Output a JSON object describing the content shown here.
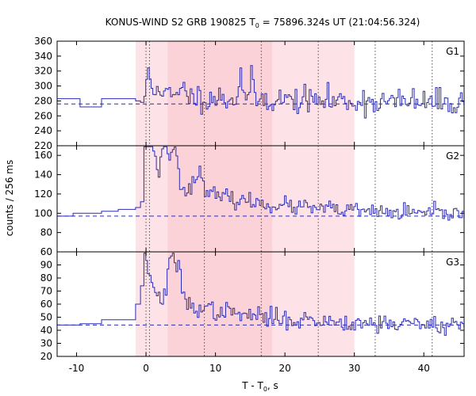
{
  "chart_data": {
    "type": "line",
    "title": {
      "prefix": "KONUS-WIND S2 GRB 190825 T",
      "sub": "0",
      "suffix": " = 75896.324s UT (21:04:56.324)"
    },
    "xlabel": {
      "prefix": "T - T",
      "sub": "0",
      "suffix": ", s"
    },
    "ylabel": "counts / 256 ms",
    "xlim": [
      -12.8,
      45.8
    ],
    "x_ticks": [
      -10,
      0,
      10,
      20,
      30,
      40
    ],
    "shaded_intervals": [
      {
        "from": -1.5,
        "to": 3.1,
        "shade": "light"
      },
      {
        "from": 3.1,
        "to": 18.2,
        "shade": "dark"
      },
      {
        "from": 18.2,
        "to": 30.0,
        "shade": "light"
      }
    ],
    "dotted_verticals": [
      0.0,
      0.5,
      8.4,
      16.6,
      24.8,
      33.0,
      41.2
    ],
    "panels": [
      {
        "name": "G1",
        "ylim": [
          220,
          360
        ],
        "y_ticks": [
          220,
          240,
          260,
          280,
          300,
          320,
          340,
          360
        ],
        "background": 276,
        "pre_trigger": [
          [
            -12.8,
            283
          ],
          [
            -9.5,
            272
          ],
          [
            -6.4,
            283
          ],
          [
            -1.5,
            280
          ],
          [
            -0.8,
            278
          ]
        ],
        "burst_start": -0.3,
        "burst_end": 45.8,
        "step": 0.256,
        "peaks": [
          {
            "t": 0.3,
            "amp": 35,
            "w": 0.3
          },
          {
            "t": 1.6,
            "amp": 20,
            "w": 0.4
          },
          {
            "t": 5.5,
            "amp": 18,
            "w": 0.4
          },
          {
            "t": 13.5,
            "amp": 50,
            "w": 0.25
          },
          {
            "t": 15.0,
            "amp": 25,
            "w": 0.3
          }
        ],
        "decay_amp": 12,
        "decay_tau": 25,
        "noise": 15,
        "seed": 11
      },
      {
        "name": "G2",
        "ylim": [
          60,
          170
        ],
        "y_ticks": [
          60,
          80,
          100,
          120,
          140,
          160
        ],
        "background": 97,
        "pre_trigger": [
          [
            -12.8,
            97
          ],
          [
            -10.5,
            100
          ],
          [
            -6.4,
            102
          ],
          [
            -4.0,
            104
          ],
          [
            -1.5,
            106
          ],
          [
            -0.8,
            112
          ]
        ],
        "burst_start": -0.3,
        "burst_end": 45.8,
        "step": 0.256,
        "peaks": [
          {
            "t": -0.1,
            "amp": 62,
            "w": 0.5
          },
          {
            "t": 0.8,
            "amp": 40,
            "w": 0.6
          },
          {
            "t": 2.5,
            "amp": 50,
            "w": 0.5
          },
          {
            "t": 3.8,
            "amp": 40,
            "w": 0.8
          },
          {
            "t": 7.5,
            "amp": 20,
            "w": 1.0
          }
        ],
        "decay_amp": 40,
        "decay_tau": 15,
        "noise": 7,
        "seed": 23
      },
      {
        "name": "G3",
        "ylim": [
          20,
          100
        ],
        "y_ticks": [
          20,
          30,
          40,
          50,
          60,
          70,
          80,
          90
        ],
        "background": 44,
        "pre_trigger": [
          [
            -12.8,
            44
          ],
          [
            -9.5,
            45
          ],
          [
            -6.4,
            48
          ],
          [
            -4.0,
            48
          ],
          [
            -1.5,
            60
          ],
          [
            -0.8,
            74
          ]
        ],
        "burst_start": -0.3,
        "burst_end": 45.8,
        "step": 0.256,
        "peaks": [
          {
            "t": -0.4,
            "amp": 48,
            "w": 0.3
          },
          {
            "t": 0.4,
            "amp": 20,
            "w": 0.4
          },
          {
            "t": 3.5,
            "amp": 30,
            "w": 0.6
          },
          {
            "t": 4.5,
            "amp": 25,
            "w": 0.7
          }
        ],
        "decay_amp": 25,
        "decay_tau": 12,
        "noise": 6,
        "seed": 37
      }
    ]
  },
  "colors": {
    "line": "#2b2bb3",
    "background_line": "#2b2bb3",
    "shade_light": "#fde3e7",
    "shade_dark": "#fbd2d8",
    "axis": "#000000",
    "dotted": "#555555"
  }
}
